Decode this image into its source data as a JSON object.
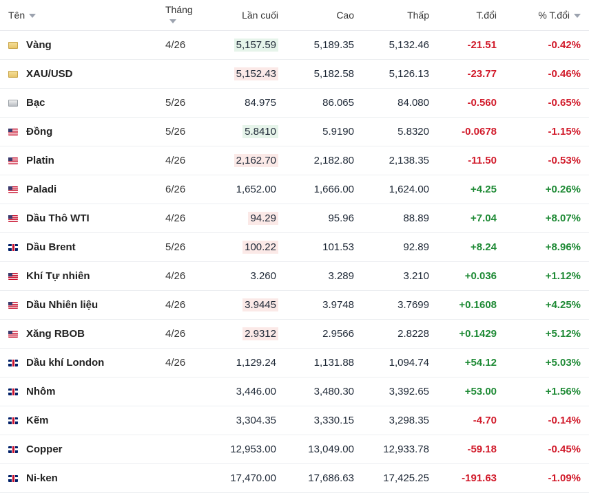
{
  "headers": {
    "name": "Tên",
    "month": "Tháng",
    "last": "Lần cuối",
    "high": "Cao",
    "low": "Thấp",
    "change": "T.đổi",
    "change_pct": "% T.đổi"
  },
  "rows": [
    {
      "flag": "gold",
      "name": "Vàng",
      "month": "4/26",
      "last": "5,157.59",
      "last_flash": "up",
      "high": "5,189.35",
      "low": "5,132.46",
      "change": "-21.51",
      "change_pct": "-0.42%",
      "direction": "down"
    },
    {
      "flag": "gold",
      "name": "XAU/USD",
      "month": "",
      "last": "5,152.43",
      "last_flash": "down",
      "high": "5,182.58",
      "low": "5,126.13",
      "change": "-23.77",
      "change_pct": "-0.46%",
      "direction": "down"
    },
    {
      "flag": "silver",
      "name": "Bạc",
      "month": "5/26",
      "last": "84.975",
      "last_flash": "",
      "high": "86.065",
      "low": "84.080",
      "change": "-0.560",
      "change_pct": "-0.65%",
      "direction": "down"
    },
    {
      "flag": "us",
      "name": "Đồng",
      "month": "5/26",
      "last": "5.8410",
      "last_flash": "up",
      "high": "5.9190",
      "low": "5.8320",
      "change": "-0.0678",
      "change_pct": "-1.15%",
      "direction": "down"
    },
    {
      "flag": "us",
      "name": "Platin",
      "month": "4/26",
      "last": "2,162.70",
      "last_flash": "down",
      "high": "2,182.80",
      "low": "2,138.35",
      "change": "-11.50",
      "change_pct": "-0.53%",
      "direction": "down"
    },
    {
      "flag": "us",
      "name": "Paladi",
      "month": "6/26",
      "last": "1,652.00",
      "last_flash": "",
      "high": "1,666.00",
      "low": "1,624.00",
      "change": "+4.25",
      "change_pct": "+0.26%",
      "direction": "up"
    },
    {
      "flag": "us",
      "name": "Dầu Thô WTI",
      "month": "4/26",
      "last": "94.29",
      "last_flash": "down",
      "high": "95.96",
      "low": "88.89",
      "change": "+7.04",
      "change_pct": "+8.07%",
      "direction": "up"
    },
    {
      "flag": "uk",
      "name": "Dầu Brent",
      "month": "5/26",
      "last": "100.22",
      "last_flash": "down",
      "high": "101.53",
      "low": "92.89",
      "change": "+8.24",
      "change_pct": "+8.96%",
      "direction": "up"
    },
    {
      "flag": "us",
      "name": "Khí Tự nhiên",
      "month": "4/26",
      "last": "3.260",
      "last_flash": "",
      "high": "3.289",
      "low": "3.210",
      "change": "+0.036",
      "change_pct": "+1.12%",
      "direction": "up"
    },
    {
      "flag": "us",
      "name": "Dầu Nhiên liệu",
      "month": "4/26",
      "last": "3.9445",
      "last_flash": "down",
      "high": "3.9748",
      "low": "3.7699",
      "change": "+0.1608",
      "change_pct": "+4.25%",
      "direction": "up"
    },
    {
      "flag": "us",
      "name": "Xăng RBOB",
      "month": "4/26",
      "last": "2.9312",
      "last_flash": "down",
      "high": "2.9566",
      "low": "2.8228",
      "change": "+0.1429",
      "change_pct": "+5.12%",
      "direction": "up"
    },
    {
      "flag": "uk",
      "name": "Dầu khí London",
      "month": "4/26",
      "last": "1,129.24",
      "last_flash": "",
      "high": "1,131.88",
      "low": "1,094.74",
      "change": "+54.12",
      "change_pct": "+5.03%",
      "direction": "up"
    },
    {
      "flag": "uk",
      "name": "Nhôm",
      "month": "",
      "last": "3,446.00",
      "last_flash": "",
      "high": "3,480.30",
      "low": "3,392.65",
      "change": "+53.00",
      "change_pct": "+1.56%",
      "direction": "up"
    },
    {
      "flag": "uk",
      "name": "Kẽm",
      "month": "",
      "last": "3,304.35",
      "last_flash": "",
      "high": "3,330.15",
      "low": "3,298.35",
      "change": "-4.70",
      "change_pct": "-0.14%",
      "direction": "down"
    },
    {
      "flag": "uk",
      "name": "Copper",
      "month": "",
      "last": "12,953.00",
      "last_flash": "",
      "high": "13,049.00",
      "low": "12,933.78",
      "change": "-59.18",
      "change_pct": "-0.45%",
      "direction": "down"
    },
    {
      "flag": "uk",
      "name": "Ni-ken",
      "month": "",
      "last": "17,470.00",
      "last_flash": "",
      "high": "17,686.63",
      "low": "17,425.25",
      "change": "-191.63",
      "change_pct": "-1.09%",
      "direction": "down"
    }
  ]
}
